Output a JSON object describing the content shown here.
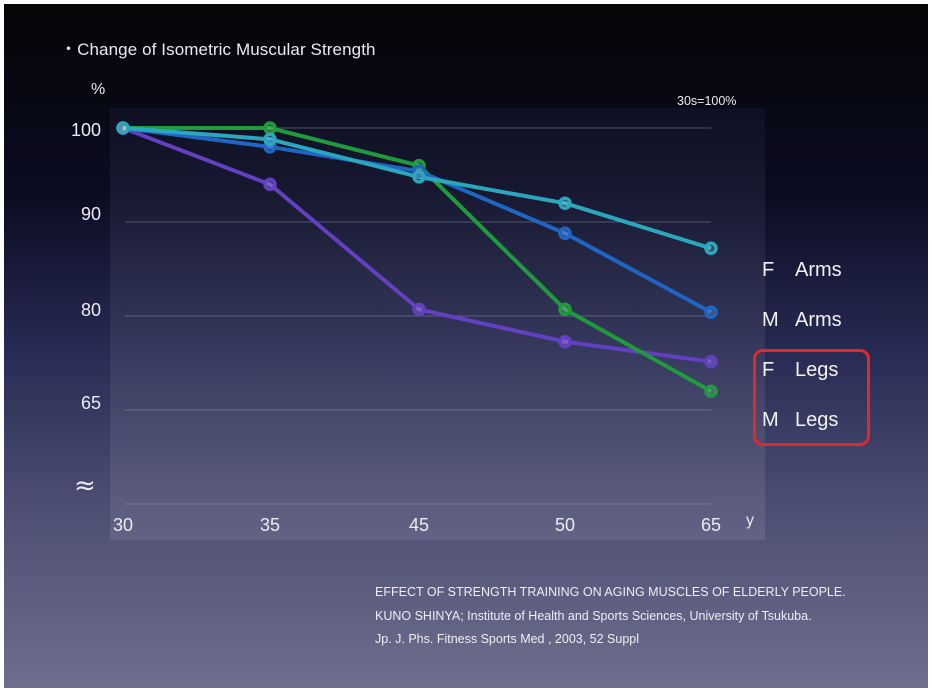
{
  "slide": {
    "title": "・Change of Isometric Muscular Strength",
    "unit_label": "%",
    "baseline_note": "30s=100%",
    "break_symbol": "≈",
    "highlight_color": "#e02a2a"
  },
  "chart_data": {
    "type": "line",
    "title": "・Change of Isometric Muscular Strength",
    "ylabel": "%",
    "xlabel": "y",
    "categories": [
      "30",
      "35",
      "45",
      "50",
      "65"
    ],
    "y_ticks": [
      "100",
      "90",
      "80",
      "65"
    ],
    "grid": true,
    "legend_position": "right",
    "series": [
      {
        "name": "F  Arms",
        "sex": "F",
        "part": "Arms",
        "color": "#2aa7bd",
        "values": [
          100,
          98.8,
          94.8,
          92.0,
          87.2
        ]
      },
      {
        "name": "M  Arms",
        "sex": "M",
        "part": "Arms",
        "color": "#1f66c4",
        "values": [
          100,
          98.0,
          95.4,
          88.8,
          80.4
        ]
      },
      {
        "name": "F  Legs",
        "sex": "F",
        "part": "Legs",
        "color": "#6340c2",
        "values": [
          100,
          94.0,
          80.7,
          75.9,
          72.7
        ]
      },
      {
        "name": "M  Legs",
        "sex": "M",
        "part": "Legs",
        "color": "#1f9a3c",
        "values": [
          100,
          100,
          96.0,
          80.7,
          68.0
        ]
      }
    ]
  },
  "reference": {
    "line1": "EFFECT OF STRENGTH TRAINING ON AGING MUSCLES OF ELDERLY PEOPLE.",
    "line2": "KUNO SHINYA; Institute of Health and Sports Sciences, University of Tsukuba.",
    "line3": "Jp. J.   Phs.   Fitness Sports Med ,  2003,  52 Suppl"
  }
}
